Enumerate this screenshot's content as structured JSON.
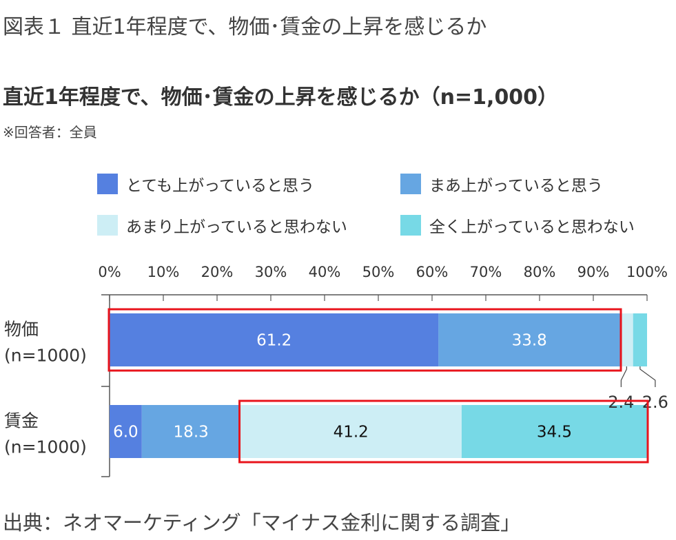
{
  "figure_title": "図表１ 直近1年程度で、物価･賃金の上昇を感じるか",
  "note": "※回答者：全員",
  "source": "出典：ネオマーケティング「マイナス金利に関する調査」",
  "colors": {
    "とても上がっていると思う": "#5580e0",
    "まあ上がっていると思う": "#66a6e2",
    "あまり上がっていると思わない": "#cdeef5",
    "全く上がっていると思わない": "#77d9e6",
    "highlight": "#e8141c",
    "axis": "#555555"
  },
  "chart_data": {
    "type": "bar",
    "orientation": "horizontal",
    "stacked": true,
    "title": "直近1年程度で、物価･賃金の上昇を感じるか（n=1,000）",
    "categories": [
      "物価\n(n=1000)",
      "賃金\n(n=1000)"
    ],
    "category_labels": [
      {
        "line1": "物価",
        "line2": "(n=1000)"
      },
      {
        "line1": "賃金",
        "line2": "(n=1000)"
      }
    ],
    "series": [
      {
        "name": "とても上がっていると思う",
        "values": [
          61.2,
          6.0
        ],
        "labels": [
          "61.2",
          "6.0"
        ]
      },
      {
        "name": "まあ上がっていると思う",
        "values": [
          33.8,
          18.3
        ],
        "labels": [
          "33.8",
          "18.3"
        ]
      },
      {
        "name": "あまり上がっていると思わない",
        "values": [
          2.4,
          41.2
        ],
        "labels": [
          "2.4",
          "41.2"
        ]
      },
      {
        "name": "全く上がっていると思わない",
        "values": [
          2.6,
          34.5
        ],
        "labels": [
          "2.6",
          "34.5"
        ]
      }
    ],
    "xlim": [
      0,
      100
    ],
    "xticks": [
      "0%",
      "10%",
      "20%",
      "30%",
      "40%",
      "50%",
      "60%",
      "70%",
      "80%",
      "90%",
      "100%"
    ],
    "legend_position": "top",
    "highlights": [
      {
        "category": 0,
        "from_series": 0,
        "to_series": 1
      },
      {
        "category": 1,
        "from_series": 2,
        "to_series": 3
      }
    ]
  }
}
